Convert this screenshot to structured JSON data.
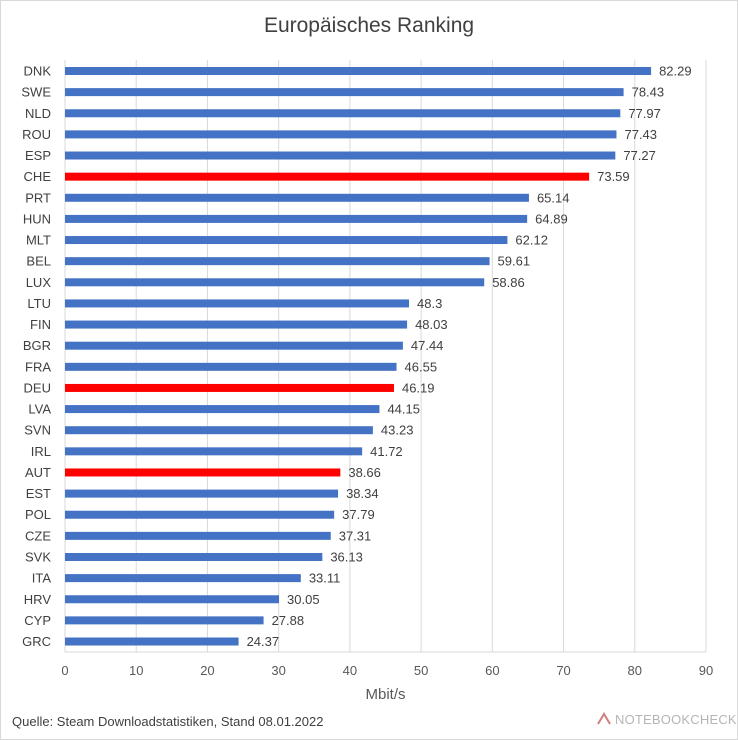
{
  "chart_data": {
    "type": "bar",
    "orientation": "horizontal",
    "title": "Europäisches Ranking",
    "xlabel": "Mbit/s",
    "ylabel": "",
    "xlim": [
      0,
      90
    ],
    "xticks": [
      0,
      10,
      20,
      30,
      40,
      50,
      60,
      70,
      80,
      90
    ],
    "grid": true,
    "categories": [
      "DNK",
      "SWE",
      "NLD",
      "ROU",
      "ESP",
      "CHE",
      "PRT",
      "HUN",
      "MLT",
      "BEL",
      "LUX",
      "LTU",
      "FIN",
      "BGR",
      "FRA",
      "DEU",
      "LVA",
      "SVN",
      "IRL",
      "AUT",
      "EST",
      "POL",
      "CZE",
      "SVK",
      "ITA",
      "HRV",
      "CYP",
      "GRC"
    ],
    "values": [
      82.29,
      78.43,
      77.97,
      77.43,
      77.27,
      73.59,
      65.14,
      64.89,
      62.12,
      59.61,
      58.86,
      48.3,
      48.03,
      47.44,
      46.55,
      46.19,
      44.15,
      43.23,
      41.72,
      38.66,
      38.34,
      37.79,
      37.31,
      36.13,
      33.11,
      30.05,
      27.88,
      24.37
    ],
    "value_labels": [
      "82.29",
      "78.43",
      "77.97",
      "77.43",
      "77.27",
      "73.59",
      "65.14",
      "64.89",
      "62.12",
      "59.61",
      "58.86",
      "48.3",
      "48.03",
      "47.44",
      "46.55",
      "46.19",
      "44.15",
      "43.23",
      "41.72",
      "38.66",
      "38.34",
      "37.79",
      "37.31",
      "36.13",
      "33.11",
      "30.05",
      "27.88",
      "24.37"
    ],
    "highlighted": [
      "CHE",
      "DEU",
      "AUT"
    ],
    "colors": {
      "default": "#4472c4",
      "highlight": "#ff0000"
    }
  },
  "footer": {
    "source": "Quelle: Steam Downloadstatistiken, Stand 08.01.2022"
  },
  "watermark": {
    "text": "NOTEBOOKCHECK"
  }
}
